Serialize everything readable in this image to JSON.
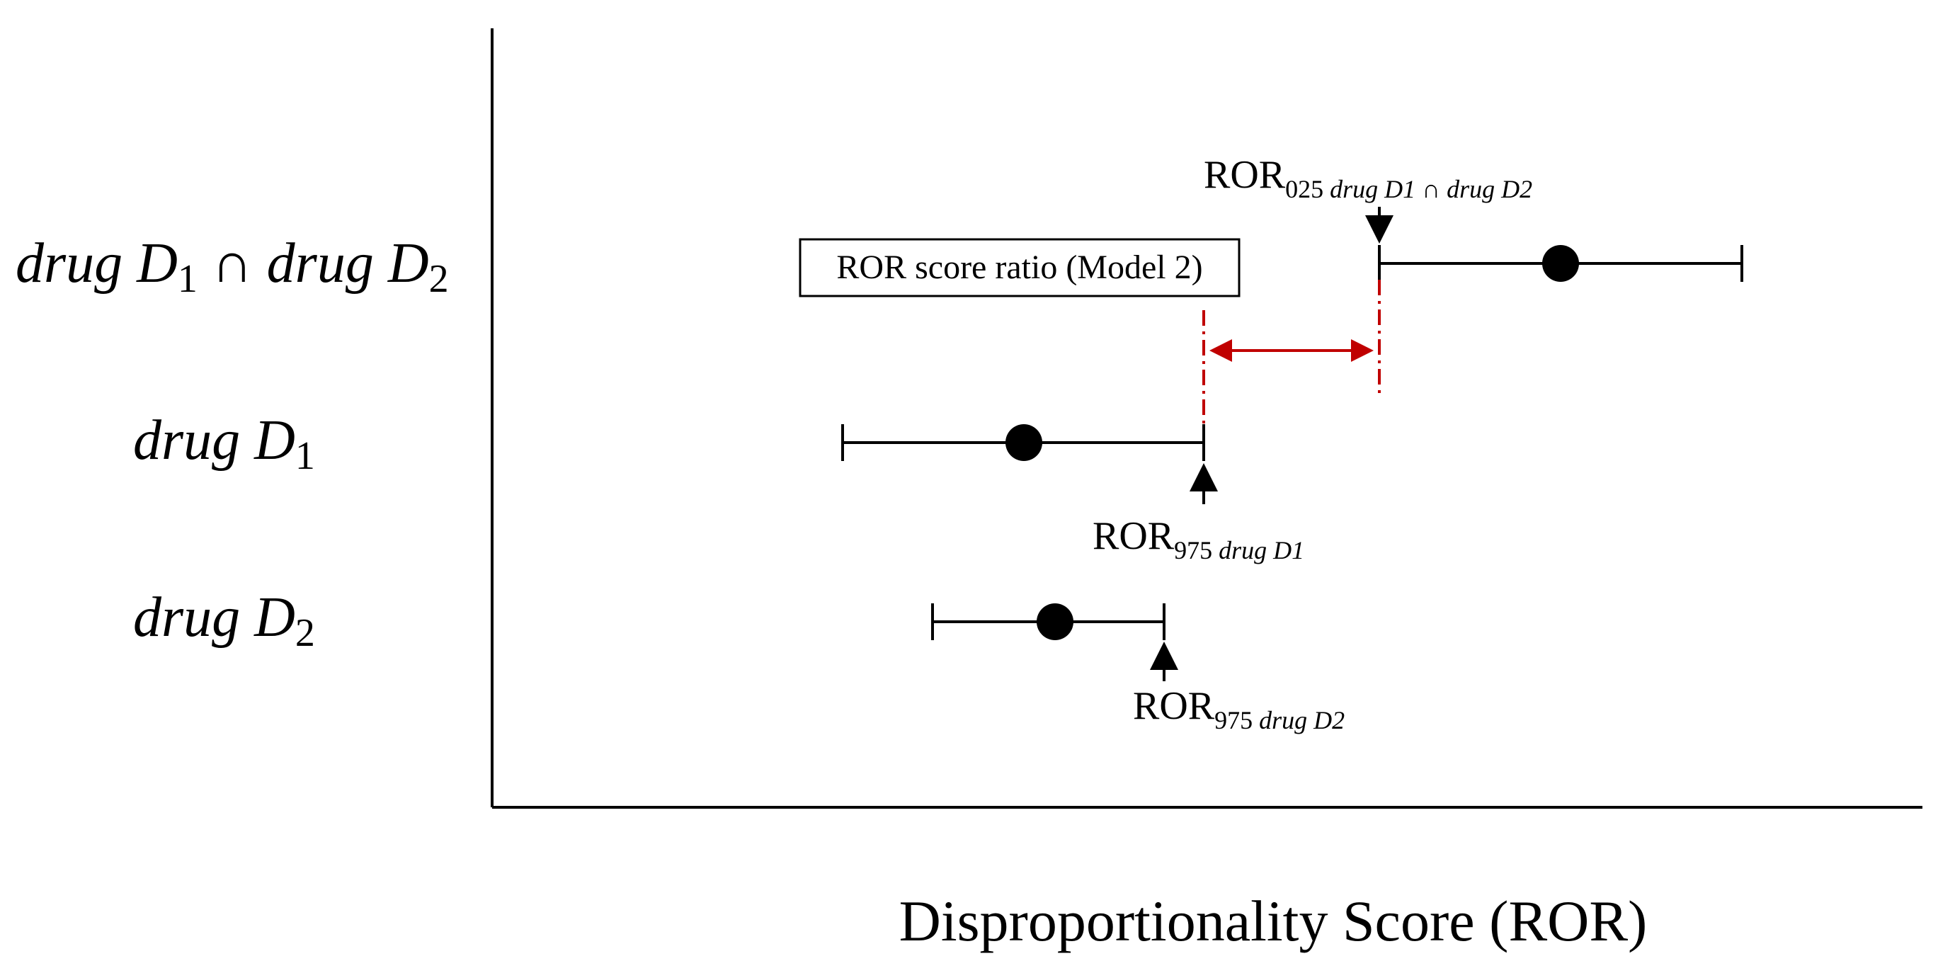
{
  "colors": {
    "ink": "#000000",
    "accent_red": "#c00000",
    "background": "#ffffff"
  },
  "chart_data": {
    "type": "interval-diagram",
    "xlabel": "Disproportionality Score (ROR)",
    "rows": [
      {
        "label_main": "drug D",
        "label_parts": [
          "drug D",
          "1",
          " ∩ drug D",
          "2"
        ],
        "point": 0.8,
        "ci": [
          0.69,
          0.9
        ]
      },
      {
        "label_parts": [
          "drug D",
          "1"
        ],
        "point": 0.39,
        "ci": [
          0.27,
          0.55
        ]
      },
      {
        "label_parts": [
          "drug D",
          "2"
        ],
        "point": 0.41,
        "ci": [
          0.33,
          0.52
        ]
      }
    ],
    "annotations": {
      "box": "ROR score ratio (Model 2)",
      "ror_025_interaction": {
        "main": "ROR",
        "sub_num": "025 ",
        "sub_it": "drug D1 ∩ drug D2"
      },
      "ror_975_d1": {
        "main": "ROR",
        "sub_num": "975 ",
        "sub_it": "drug D1"
      },
      "ror_975_d2": {
        "main": "ROR",
        "sub_num": "975 ",
        "sub_it": "drug D2"
      }
    }
  }
}
